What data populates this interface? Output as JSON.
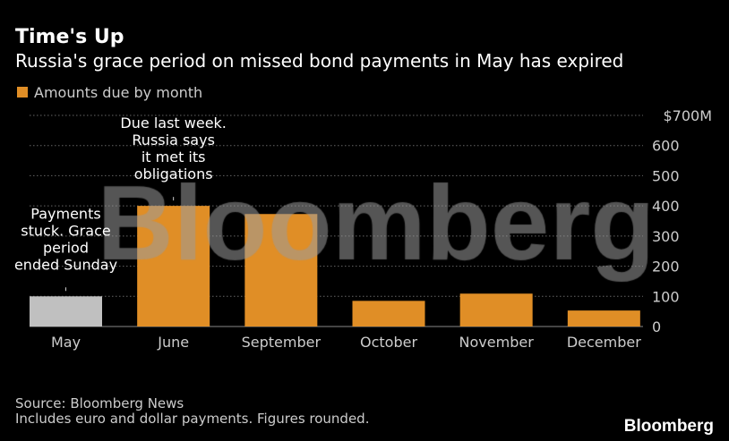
{
  "header": {
    "title": "Time's Up",
    "subtitle": "Russia's grace period on missed bond payments in May has expired"
  },
  "chart_data": {
    "type": "bar",
    "categories": [
      "May",
      "June",
      "September",
      "October",
      "November",
      "December"
    ],
    "series": [
      {
        "name": "Amounts due by month",
        "values": [
          100,
          400,
          373,
          85,
          109,
          53
        ]
      }
    ],
    "bar_colors": [
      "#c0c0c0",
      "#e08e26",
      "#e08e26",
      "#e08e26",
      "#e08e26",
      "#e08e26"
    ],
    "ylim": [
      0,
      700
    ],
    "yticks": [
      0,
      100,
      200,
      300,
      400,
      500,
      600,
      700
    ],
    "ytick_labels": [
      "0",
      "100",
      "200",
      "300",
      "400",
      "500",
      "600",
      "$700M"
    ],
    "y_axis_side": "right",
    "grid": true,
    "legend": {
      "label": "Amounts due by month",
      "color": "#e08e26",
      "placement": "top-left"
    },
    "annotations": [
      {
        "category": "May",
        "lines": [
          "Payments",
          "stuck. Grace",
          "period",
          "ended Sunday"
        ]
      },
      {
        "category": "June",
        "lines": [
          "Due last week.",
          "Russia says",
          "it met its",
          "obligations"
        ]
      }
    ]
  },
  "footer": {
    "source": "Source: Bloomberg News",
    "note": "Includes euro and dollar payments. Figures rounded.",
    "logo": "Bloomberg"
  },
  "watermark": "Bloomberg"
}
